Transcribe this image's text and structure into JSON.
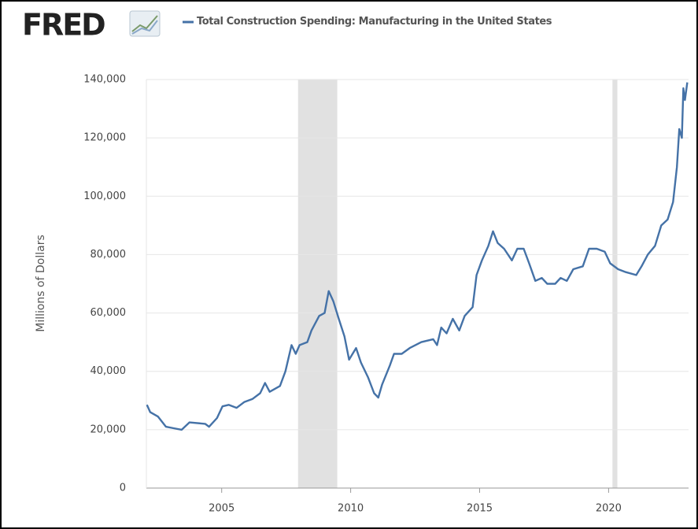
{
  "chart_data": {
    "type": "line",
    "logo": "FRED",
    "title": "Total Construction Spending: Manufacturing in the United States",
    "ylabel": "Millions of Dollars",
    "xlim": [
      2002.08,
      2023.1
    ],
    "xticks": [
      2005,
      2010,
      2015,
      2020
    ],
    "ylim": [
      0,
      140000
    ],
    "yticks": [
      0,
      {
        "value": 20000,
        "label": "20,000"
      },
      {
        "value": 40000,
        "label": "40,000"
      },
      {
        "value": 60000,
        "label": "60,000"
      },
      {
        "value": 80000,
        "label": "80,000"
      },
      {
        "value": 100000,
        "label": "100,000"
      },
      {
        "value": 120000,
        "label": "120,000"
      },
      {
        "value": 140000,
        "label": "140,000"
      }
    ],
    "grid": true,
    "recessions": [
      [
        2007.96,
        2009.48
      ],
      [
        2020.15,
        2020.34
      ]
    ],
    "recession_color": "#e1e1e1",
    "series": [
      {
        "name": "Total Construction Spending: Manufacturing in the United States",
        "color": "#4572a7",
        "x": [
          2002.1,
          2002.23,
          2002.53,
          2002.84,
          2003.14,
          2003.45,
          2003.75,
          2004.36,
          2004.51,
          2004.82,
          2005.03,
          2005.27,
          2005.58,
          2005.88,
          2006.19,
          2006.49,
          2006.68,
          2006.86,
          2007.26,
          2007.47,
          2007.71,
          2007.87,
          2008.02,
          2008.32,
          2008.48,
          2008.78,
          2008.99,
          2009.15,
          2009.33,
          2009.54,
          2009.76,
          2009.94,
          2010.21,
          2010.4,
          2010.67,
          2010.91,
          2011.07,
          2011.22,
          2011.52,
          2011.68,
          2011.98,
          2012.29,
          2012.74,
          2013.2,
          2013.35,
          2013.51,
          2013.72,
          2013.96,
          2014.21,
          2014.42,
          2014.73,
          2014.88,
          2015.09,
          2015.34,
          2015.52,
          2015.7,
          2015.95,
          2016.25,
          2016.46,
          2016.71,
          2016.92,
          2017.16,
          2017.41,
          2017.62,
          2017.93,
          2018.14,
          2018.38,
          2018.63,
          2019.0,
          2019.24,
          2019.54,
          2019.85,
          2020.06,
          2020.37,
          2020.67,
          2021.07,
          2021.28,
          2021.52,
          2021.8,
          2022.04,
          2022.29,
          2022.5,
          2022.65,
          2022.74,
          2022.84,
          2022.9,
          2022.96,
          2023.05
        ],
        "values": [
          28500,
          26000,
          24500,
          21000,
          20500,
          20000,
          22500,
          22000,
          21000,
          24000,
          28000,
          28500,
          27500,
          29500,
          30500,
          32500,
          36000,
          33000,
          35000,
          40000,
          49000,
          46000,
          49000,
          50000,
          54000,
          59000,
          60000,
          67500,
          64000,
          58000,
          52000,
          44000,
          48000,
          43000,
          38000,
          32500,
          31000,
          35500,
          42000,
          46000,
          46000,
          48000,
          50000,
          51000,
          49000,
          55000,
          53000,
          58000,
          54000,
          59000,
          62000,
          73000,
          78000,
          83000,
          88000,
          84000,
          82000,
          78000,
          82000,
          82000,
          77000,
          71000,
          72000,
          70000,
          70000,
          72000,
          71000,
          75000,
          76000,
          82000,
          82000,
          81000,
          77000,
          75000,
          74000,
          73000,
          76000,
          80000,
          83000,
          90000,
          92000,
          98000,
          110000,
          123000,
          120000,
          137000,
          133000,
          139000
        ]
      }
    ]
  }
}
